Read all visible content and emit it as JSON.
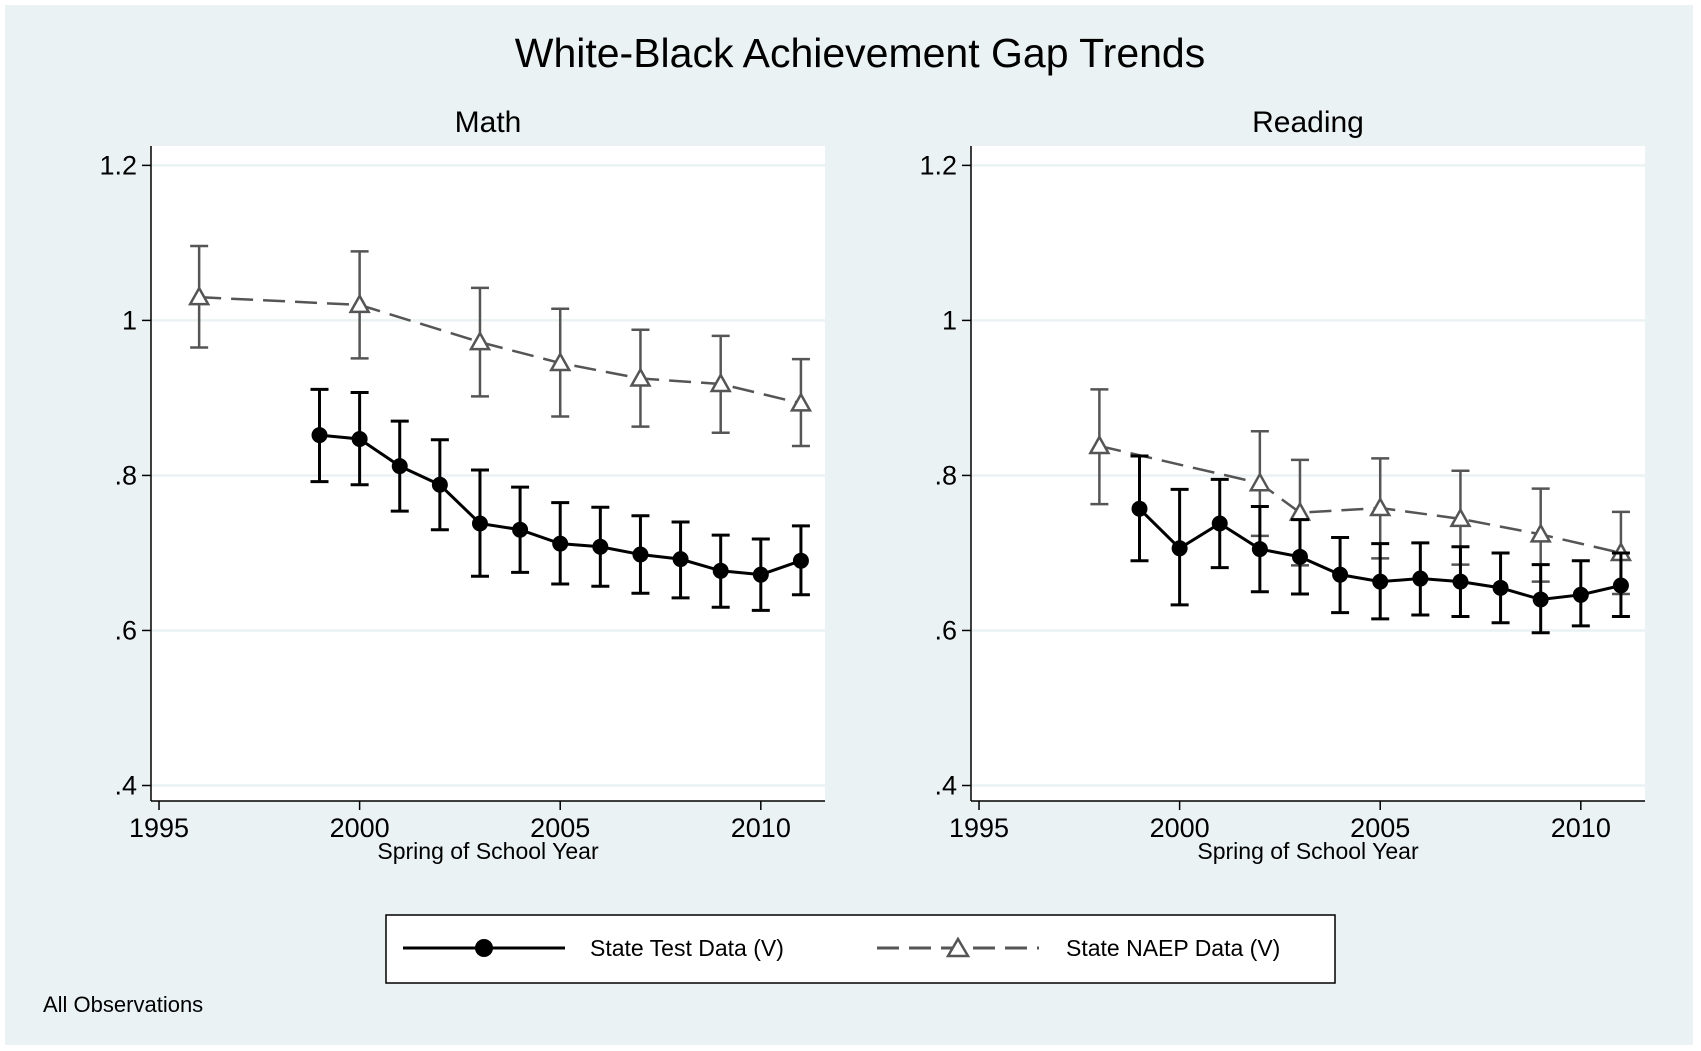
{
  "title": "White-Black Achievement Gap Trends",
  "note": "All Observations",
  "legend": {
    "position": "bottom",
    "items": [
      "State Test Data (V)",
      "State NAEP Data (V)"
    ]
  },
  "colors": {
    "background": "#eaf2f3",
    "plot_area": "#ffffff",
    "grid": "#eaf2f3",
    "state_test": "#000000",
    "state_naep": "#555555"
  },
  "chart_data": [
    {
      "type": "line",
      "title": "Math",
      "xlabel": "Spring of School Year",
      "ylabel": "",
      "xlim": [
        1994.8,
        2011.6
      ],
      "ylim": [
        0.38,
        1.225
      ],
      "xticks": [
        1995,
        2000,
        2005,
        2010
      ],
      "xtick_labels": [
        "1995",
        "2000",
        "2005",
        "2010"
      ],
      "yticks": [
        0.4,
        0.6,
        0.8,
        1.0,
        1.2
      ],
      "ytick_labels": [
        ".4",
        ".6",
        ".8",
        "1",
        "1.2"
      ],
      "grid": true,
      "series": [
        {
          "name": "State Test Data (V)",
          "marker": "circle",
          "line": "solid",
          "x": [
            1999,
            2000,
            2001,
            2002,
            2003,
            2004,
            2005,
            2006,
            2007,
            2008,
            2009,
            2010,
            2011
          ],
          "y": [
            0.852,
            0.847,
            0.812,
            0.788,
            0.738,
            0.73,
            0.712,
            0.708,
            0.698,
            0.692,
            0.677,
            0.672,
            0.69
          ],
          "lower": [
            0.792,
            0.788,
            0.754,
            0.73,
            0.67,
            0.675,
            0.66,
            0.657,
            0.648,
            0.642,
            0.63,
            0.626,
            0.646
          ],
          "upper": [
            0.911,
            0.907,
            0.87,
            0.846,
            0.807,
            0.785,
            0.765,
            0.759,
            0.748,
            0.74,
            0.723,
            0.718,
            0.735
          ]
        },
        {
          "name": "State NAEP Data (V)",
          "marker": "triangle",
          "line": "dashed",
          "x": [
            1996,
            2000,
            2003,
            2005,
            2007,
            2009,
            2011
          ],
          "y": [
            1.03,
            1.02,
            0.972,
            0.945,
            0.925,
            0.918,
            0.893
          ],
          "lower": [
            0.965,
            0.951,
            0.902,
            0.876,
            0.863,
            0.855,
            0.838
          ],
          "upper": [
            1.096,
            1.089,
            1.042,
            1.015,
            0.988,
            0.98,
            0.95
          ]
        }
      ]
    },
    {
      "type": "line",
      "title": "Reading",
      "xlabel": "Spring of School Year",
      "ylabel": "",
      "xlim": [
        1994.8,
        2011.6
      ],
      "ylim": [
        0.38,
        1.225
      ],
      "xticks": [
        1995,
        2000,
        2005,
        2010
      ],
      "xtick_labels": [
        "1995",
        "2000",
        "2005",
        "2010"
      ],
      "yticks": [
        0.4,
        0.6,
        0.8,
        1.0,
        1.2
      ],
      "ytick_labels": [
        ".4",
        ".6",
        ".8",
        "1",
        "1.2"
      ],
      "grid": true,
      "series": [
        {
          "name": "State Test Data (V)",
          "marker": "circle",
          "line": "solid",
          "x": [
            1999,
            2000,
            2001,
            2002,
            2003,
            2004,
            2005,
            2006,
            2007,
            2008,
            2009,
            2010,
            2011
          ],
          "y": [
            0.757,
            0.706,
            0.738,
            0.705,
            0.695,
            0.672,
            0.663,
            0.667,
            0.663,
            0.655,
            0.64,
            0.646,
            0.658
          ],
          "lower": [
            0.69,
            0.633,
            0.681,
            0.65,
            0.647,
            0.623,
            0.615,
            0.62,
            0.618,
            0.61,
            0.597,
            0.606,
            0.618
          ],
          "upper": [
            0.825,
            0.782,
            0.795,
            0.76,
            0.743,
            0.72,
            0.712,
            0.713,
            0.708,
            0.7,
            0.685,
            0.69,
            0.7
          ]
        },
        {
          "name": "State NAEP Data (V)",
          "marker": "triangle",
          "line": "dashed",
          "x": [
            1998,
            2002,
            2003,
            2005,
            2007,
            2009,
            2011
          ],
          "y": [
            0.838,
            0.79,
            0.752,
            0.758,
            0.744,
            0.724,
            0.7
          ],
          "lower": [
            0.763,
            0.722,
            0.684,
            0.693,
            0.685,
            0.663,
            0.647
          ],
          "upper": [
            0.911,
            0.857,
            0.82,
            0.822,
            0.806,
            0.783,
            0.753
          ]
        }
      ]
    }
  ]
}
